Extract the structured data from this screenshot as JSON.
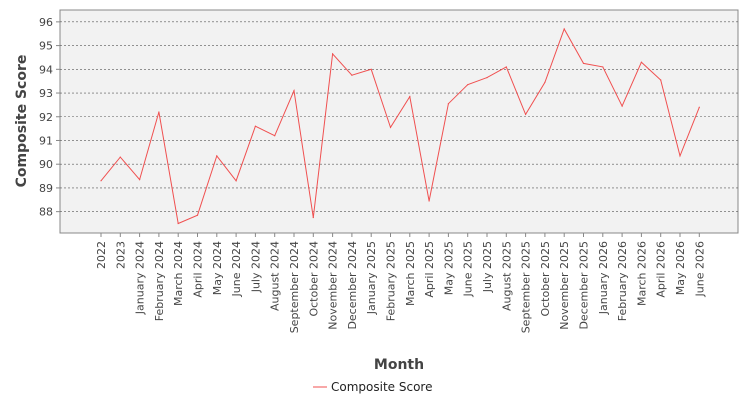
{
  "chart_data": {
    "type": "line",
    "title": "",
    "xlabel": "Month",
    "ylabel": "Composite Score",
    "categories": [
      "2022",
      "2023",
      "January 2024",
      "February 2024",
      "March 2024",
      "April 2024",
      "May 2024",
      "June 2024",
      "July 2024",
      "August 2024",
      "September 2024",
      "October 2024",
      "November 2024",
      "December 2024",
      "January 2025",
      "February 2025",
      "March 2025",
      "April 2025",
      "May 2025",
      "June 2025",
      "July 2025",
      "August 2025",
      "September 2025",
      "October 2025",
      "November 2025",
      "December 2025",
      "January 2026",
      "February 2026",
      "March 2026",
      "April 2026",
      "May 2026",
      "June 2026"
    ],
    "series": [
      {
        "name": "Composite Score",
        "color": "#f05050",
        "values": [
          89.3,
          90.3,
          89.35,
          92.2,
          87.5,
          87.85,
          90.35,
          89.3,
          91.6,
          91.2,
          93.1,
          87.75,
          94.65,
          93.75,
          94.0,
          91.55,
          92.85,
          88.45,
          92.55,
          93.35,
          93.65,
          94.1,
          92.1,
          93.45,
          95.7,
          94.25,
          94.1,
          92.45,
          94.3,
          93.55,
          90.35,
          92.4
        ]
      }
    ],
    "yticks": [
      88,
      89,
      90,
      91,
      92,
      93,
      94,
      95,
      96
    ],
    "ylim": [
      87.1,
      96.5
    ],
    "grid": true,
    "legend": "bottom-center",
    "plot_background": "#f2f2f2",
    "grid_color": "#555555"
  }
}
